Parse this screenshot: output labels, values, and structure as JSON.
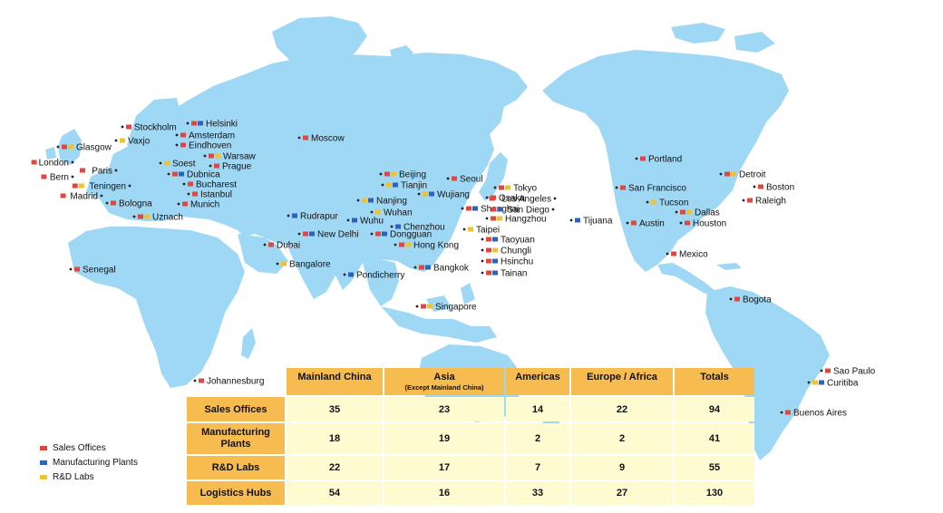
{
  "legend": [
    {
      "label": "Sales Offices",
      "color": "#e0483f"
    },
    {
      "label": "Manufacturing Plants",
      "color": "#2f63b8"
    },
    {
      "label": "R&D Labs",
      "color": "#f2c12e"
    }
  ],
  "colors": {
    "land": "#9fd8f5",
    "sales": "#e0483f",
    "manufacturing": "#2f63b8",
    "rnd": "#f2c12e",
    "header": "#f7bc4f",
    "cell": "#fefbd0"
  },
  "locations": [
    {
      "name": "Stockholm",
      "types": [
        "sales"
      ]
    },
    {
      "name": "Helsinki",
      "types": [
        "sales",
        "manufacturing"
      ]
    },
    {
      "name": "Vaxjo",
      "types": [
        "rnd"
      ]
    },
    {
      "name": "Amsterdam",
      "types": [
        "sales"
      ]
    },
    {
      "name": "Glasgow",
      "types": [
        "sales",
        "rnd"
      ]
    },
    {
      "name": "Eindhoven",
      "types": [
        "sales"
      ]
    },
    {
      "name": "Warsaw",
      "types": [
        "sales",
        "rnd"
      ]
    },
    {
      "name": "London",
      "types": [
        "sales"
      ]
    },
    {
      "name": "Soest",
      "types": [
        "rnd"
      ]
    },
    {
      "name": "Prague",
      "types": [
        "sales"
      ]
    },
    {
      "name": "Paris",
      "types": [
        "sales"
      ]
    },
    {
      "name": "Dubnica",
      "types": [
        "sales",
        "manufacturing"
      ]
    },
    {
      "name": "Bern",
      "types": [
        "sales"
      ]
    },
    {
      "name": "Bucharest",
      "types": [
        "sales"
      ]
    },
    {
      "name": "Teningen",
      "types": [
        "sales",
        "rnd"
      ]
    },
    {
      "name": "Istanbul",
      "types": [
        "sales"
      ]
    },
    {
      "name": "Madrid",
      "types": [
        "sales"
      ]
    },
    {
      "name": "Munich",
      "types": [
        "sales"
      ]
    },
    {
      "name": "Bologna",
      "types": [
        "sales"
      ]
    },
    {
      "name": "Uznach",
      "types": [
        "sales",
        "rnd"
      ]
    },
    {
      "name": "Moscow",
      "types": [
        "sales"
      ]
    },
    {
      "name": "Beijing",
      "types": [
        "sales",
        "rnd"
      ]
    },
    {
      "name": "Seoul",
      "types": [
        "sales"
      ]
    },
    {
      "name": "Tianjin",
      "types": [
        "rnd",
        "manufacturing"
      ]
    },
    {
      "name": "Tokyo",
      "types": [
        "sales",
        "rnd"
      ]
    },
    {
      "name": "Wujiang",
      "types": [
        "rnd",
        "manufacturing"
      ]
    },
    {
      "name": "Osaka",
      "types": [
        "sales"
      ]
    },
    {
      "name": "Nanjing",
      "types": [
        "rnd",
        "manufacturing"
      ]
    },
    {
      "name": "Shanghai",
      "types": [
        "sales",
        "manufacturing"
      ]
    },
    {
      "name": "Wuhan",
      "types": [
        "rnd"
      ]
    },
    {
      "name": "Hangzhou",
      "types": [
        "sales",
        "rnd"
      ]
    },
    {
      "name": "Rudrapur",
      "types": [
        "manufacturing"
      ]
    },
    {
      "name": "Wuhu",
      "types": [
        "manufacturing"
      ]
    },
    {
      "name": "Chenzhou",
      "types": [
        "manufacturing"
      ]
    },
    {
      "name": "Taipei",
      "types": [
        "rnd"
      ]
    },
    {
      "name": "New Delhi",
      "types": [
        "sales",
        "manufacturing"
      ]
    },
    {
      "name": "Dongguan",
      "types": [
        "sales",
        "manufacturing"
      ]
    },
    {
      "name": "Taoyuan",
      "types": [
        "sales",
        "manufacturing"
      ]
    },
    {
      "name": "Dubai",
      "types": [
        "sales"
      ]
    },
    {
      "name": "Hong Kong",
      "types": [
        "sales",
        "rnd"
      ]
    },
    {
      "name": "Chungli",
      "types": [
        "sales",
        "rnd"
      ]
    },
    {
      "name": "Hsinchu",
      "types": [
        "sales",
        "manufacturing"
      ]
    },
    {
      "name": "Bangalore",
      "types": [
        "rnd"
      ]
    },
    {
      "name": "Bangkok",
      "types": [
        "sales",
        "manufacturing"
      ]
    },
    {
      "name": "Tainan",
      "types": [
        "sales",
        "manufacturing"
      ]
    },
    {
      "name": "Pondicherry",
      "types": [
        "manufacturing"
      ]
    },
    {
      "name": "Senegal",
      "types": [
        "sales"
      ]
    },
    {
      "name": "Singapore",
      "types": [
        "sales",
        "rnd"
      ]
    },
    {
      "name": "Johannesburg",
      "types": [
        "sales"
      ]
    },
    {
      "name": "Portland",
      "types": [
        "sales"
      ]
    },
    {
      "name": "Detroit",
      "types": [
        "sales",
        "rnd"
      ]
    },
    {
      "name": "Boston",
      "types": [
        "sales"
      ]
    },
    {
      "name": "San Francisco",
      "types": [
        "sales"
      ]
    },
    {
      "name": "Los Angeles",
      "types": [
        "sales"
      ]
    },
    {
      "name": "Raleigh",
      "types": [
        "sales"
      ]
    },
    {
      "name": "Tucson",
      "types": [
        "rnd"
      ]
    },
    {
      "name": "San Diego",
      "types": [
        "sales",
        "manufacturing"
      ]
    },
    {
      "name": "Dallas",
      "types": [
        "sales",
        "rnd"
      ]
    },
    {
      "name": "Tijuana",
      "types": [
        "manufacturing"
      ]
    },
    {
      "name": "Austin",
      "types": [
        "sales"
      ]
    },
    {
      "name": "Houston",
      "types": [
        "sales"
      ]
    },
    {
      "name": "Mexico",
      "types": [
        "sales"
      ]
    },
    {
      "name": "Bogota",
      "types": [
        "sales"
      ]
    },
    {
      "name": "Sao Paulo",
      "types": [
        "sales"
      ]
    },
    {
      "name": "Curitiba",
      "types": [
        "rnd",
        "manufacturing"
      ]
    },
    {
      "name": "Buenos Aires",
      "types": [
        "sales"
      ]
    }
  ],
  "table": {
    "columns": [
      {
        "label": "Mainland China",
        "sub": ""
      },
      {
        "label": "Asia",
        "sub": "(Except Mainland China)"
      },
      {
        "label": "Americas",
        "sub": ""
      },
      {
        "label": "Europe / Africa",
        "sub": ""
      },
      {
        "label": "Totals",
        "sub": ""
      }
    ],
    "rows": [
      {
        "label": "Sales Offices",
        "values": [
          "35",
          "23",
          "14",
          "22",
          "94"
        ]
      },
      {
        "label": "Manufacturing Plants",
        "values": [
          "18",
          "19",
          "2",
          "2",
          "41"
        ]
      },
      {
        "label": "R&D Labs",
        "values": [
          "22",
          "17",
          "7",
          "9",
          "55"
        ]
      },
      {
        "label": "Logistics Hubs",
        "values": [
          "54",
          "16",
          "33",
          "27",
          "130"
        ]
      }
    ]
  }
}
